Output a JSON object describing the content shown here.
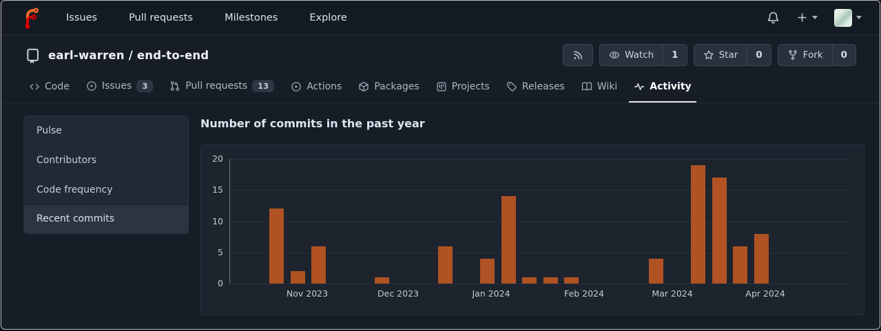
{
  "navbar": {
    "links": [
      {
        "label": "Issues"
      },
      {
        "label": "Pull requests"
      },
      {
        "label": "Milestones"
      },
      {
        "label": "Explore"
      }
    ]
  },
  "repo": {
    "title": "earl-warren / end-to-end"
  },
  "actions": {
    "watch_label": "Watch",
    "watch_count": "1",
    "star_label": "Star",
    "star_count": "0",
    "fork_label": "Fork",
    "fork_count": "0"
  },
  "tabs": [
    {
      "label": "Code",
      "icon": "code-icon"
    },
    {
      "label": "Issues",
      "icon": "issue-opened-icon",
      "badge": "3"
    },
    {
      "label": "Pull requests",
      "icon": "pull-request-icon",
      "badge": "13"
    },
    {
      "label": "Actions",
      "icon": "play-circle-icon"
    },
    {
      "label": "Packages",
      "icon": "package-icon"
    },
    {
      "label": "Projects",
      "icon": "project-board-icon"
    },
    {
      "label": "Releases",
      "icon": "tag-icon"
    },
    {
      "label": "Wiki",
      "icon": "book-icon"
    },
    {
      "label": "Activity",
      "icon": "pulse-icon",
      "active": true
    }
  ],
  "sidebar": {
    "items": [
      {
        "label": "Pulse"
      },
      {
        "label": "Contributors"
      },
      {
        "label": "Code frequency"
      },
      {
        "label": "Recent commits",
        "active": true
      }
    ]
  },
  "main": {
    "heading": "Number of commits in the past year"
  },
  "chart_data": {
    "type": "bar",
    "title": "Number of commits in the past year",
    "x_unit": "week",
    "values": [
      12,
      2,
      6,
      0,
      0,
      1,
      0,
      0,
      6,
      0,
      4,
      14,
      1,
      1,
      1,
      0,
      0,
      0,
      4,
      0,
      19,
      17,
      6,
      8
    ],
    "x_tick_labels": [
      "Nov 2023",
      "Dec 2023",
      "Jan 2024",
      "Feb 2024",
      "Mar 2024",
      "Apr 2024"
    ],
    "y_ticks": [
      0,
      5,
      10,
      15,
      20
    ],
    "ylim": [
      0,
      20
    ],
    "bar_color": "#b05223",
    "grid": true,
    "legend": "none"
  },
  "colors": {
    "bar": "#b05223",
    "logo_orange": "#ff6b22",
    "logo_red": "#d40000",
    "active_tab_underline": "#e4e8ec"
  }
}
